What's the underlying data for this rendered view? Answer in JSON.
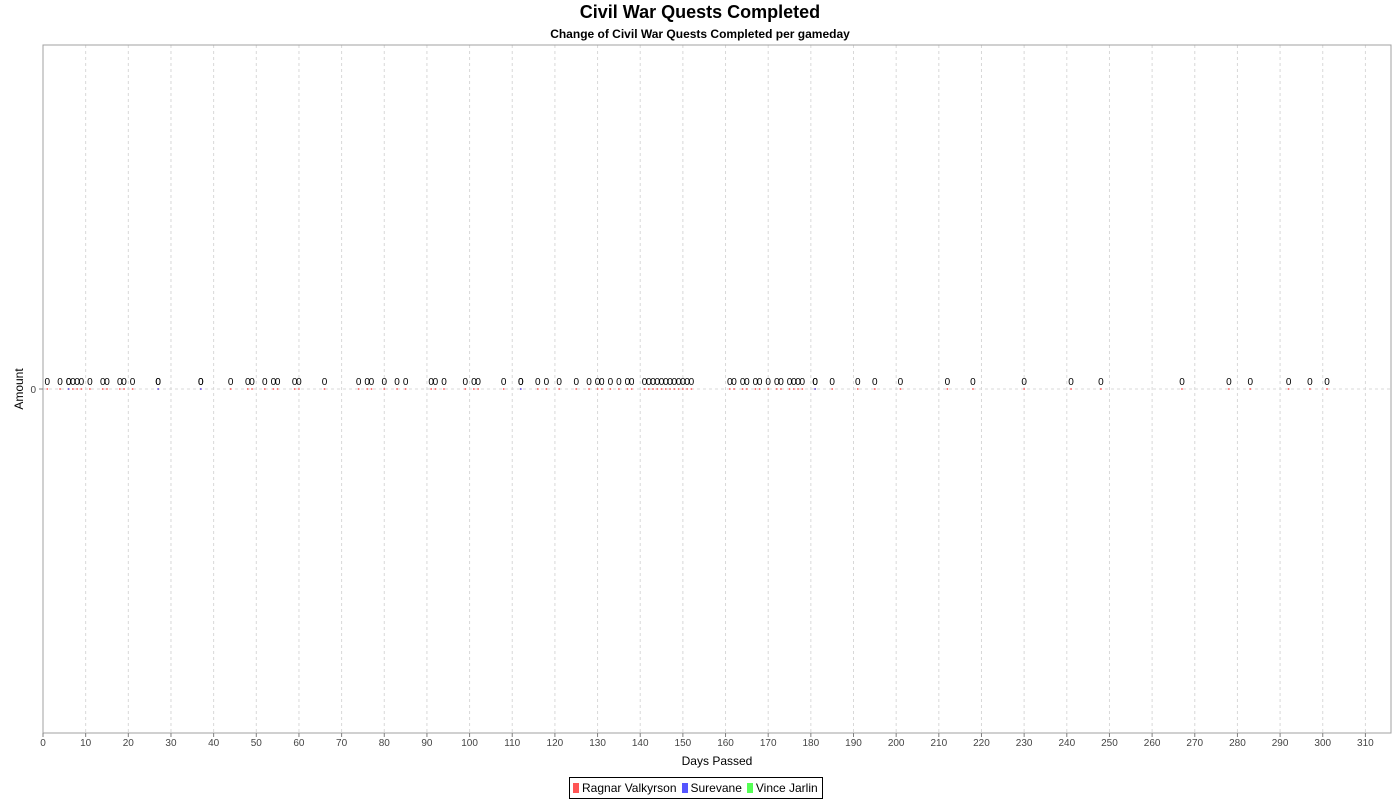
{
  "chart_data": {
    "type": "scatter",
    "title": "Civil War Quests Completed",
    "subtitle": "Change of Civil War Quests Completed per gameday",
    "xlabel": "Days Passed",
    "ylabel": "Amount",
    "xlim": [
      0,
      316
    ],
    "x_ticks": [
      0,
      10,
      20,
      30,
      40,
      50,
      60,
      70,
      80,
      90,
      100,
      110,
      120,
      130,
      140,
      150,
      160,
      170,
      180,
      190,
      200,
      210,
      220,
      230,
      240,
      250,
      260,
      270,
      280,
      290,
      300,
      310
    ],
    "y_ticks": [
      0
    ],
    "grid": true,
    "point_label": "0",
    "series": [
      {
        "name": "Ragnar Valkyrson",
        "color": "#ff5555",
        "x": [
          1,
          4,
          6,
          7,
          8,
          9,
          11,
          14,
          15,
          18,
          19,
          21,
          27,
          37,
          44,
          48,
          49,
          52,
          54,
          55,
          59,
          60,
          66,
          74,
          76,
          77,
          80,
          83,
          85,
          91,
          92,
          94,
          99,
          101,
          102,
          108,
          112,
          116,
          118,
          121,
          125,
          128,
          130,
          131,
          133,
          135,
          137,
          138,
          141,
          142,
          143,
          144,
          145,
          146,
          147,
          148,
          149,
          150,
          151,
          152,
          161,
          162,
          164,
          165,
          167,
          168,
          170,
          172,
          173,
          175,
          176,
          177,
          178,
          181,
          185,
          191,
          195,
          201,
          212,
          218,
          230,
          241,
          248,
          267,
          278,
          283,
          292,
          297,
          301
        ],
        "values": [
          0,
          0,
          0,
          0,
          0,
          0,
          0,
          0,
          0,
          0,
          0,
          0,
          0,
          0,
          0,
          0,
          0,
          0,
          0,
          0,
          0,
          0,
          0,
          0,
          0,
          0,
          0,
          0,
          0,
          0,
          0,
          0,
          0,
          0,
          0,
          0,
          0,
          0,
          0,
          0,
          0,
          0,
          0,
          0,
          0,
          0,
          0,
          0,
          0,
          0,
          0,
          0,
          0,
          0,
          0,
          0,
          0,
          0,
          0,
          0,
          0,
          0,
          0,
          0,
          0,
          0,
          0,
          0,
          0,
          0,
          0,
          0,
          0,
          0,
          0,
          0,
          0,
          0,
          0,
          0,
          0,
          0,
          0,
          0,
          0,
          0,
          0,
          0,
          0
        ]
      },
      {
        "name": "Surevane",
        "color": "#5555ff",
        "x": [
          6,
          27,
          37,
          112,
          181
        ],
        "values": [
          0,
          0,
          0,
          0,
          0
        ]
      },
      {
        "name": "Vince Jarlin",
        "color": "#55ff55",
        "x": [],
        "values": []
      }
    ],
    "legend_position": "bottom-center"
  }
}
